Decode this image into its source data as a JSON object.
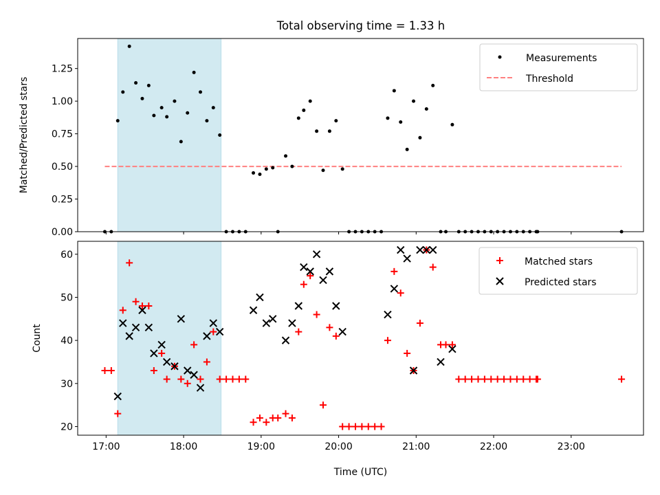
{
  "chart_data": [
    {
      "type": "scatter",
      "title": "Total observing time = 1.33 h",
      "xlabel": "",
      "ylabel": "Matched/Predicted stars",
      "xlim": [
        "16:38",
        "23:56"
      ],
      "ylim": [
        0,
        1.48
      ],
      "yticks": [
        0.0,
        0.25,
        0.5,
        0.75,
        1.0,
        1.25
      ],
      "ytick_labels": [
        "0.00",
        "0.25",
        "0.50",
        "0.75",
        "1.00",
        "1.25"
      ],
      "xticks": [
        "17:00",
        "18:00",
        "19:00",
        "20:00",
        "21:00",
        "22:00",
        "23:00"
      ],
      "shaded_interval": [
        "17:09",
        "18:29"
      ],
      "shade_color": "#add8e6",
      "legend_position": "top-right",
      "legend": [
        "Measurements",
        "Threshold"
      ],
      "series": [
        {
          "name": "Measurements",
          "marker": "dot",
          "color": "#000000",
          "x": [
            "16:59",
            "17:04",
            "17:09",
            "17:13",
            "17:18",
            "17:23",
            "17:28",
            "17:33",
            "17:37",
            "17:43",
            "17:47",
            "17:53",
            "17:58",
            "18:03",
            "18:08",
            "18:13",
            "18:18",
            "18:23",
            "18:28",
            "18:33",
            "18:38",
            "18:43",
            "18:48",
            "18:54",
            "18:59",
            "19:04",
            "19:09",
            "19:13",
            "19:19",
            "19:24",
            "19:29",
            "19:33",
            "19:38",
            "19:43",
            "19:48",
            "19:53",
            "19:58",
            "20:03",
            "20:08",
            "20:13",
            "20:18",
            "20:23",
            "20:28",
            "20:33",
            "20:38",
            "20:43",
            "20:48",
            "20:53",
            "20:58",
            "21:03",
            "21:08",
            "21:13",
            "21:19",
            "21:23",
            "21:28",
            "21:33",
            "21:38",
            "21:43",
            "21:48",
            "21:53",
            "21:58",
            "22:03",
            "22:08",
            "22:13",
            "22:18",
            "22:23",
            "22:28",
            "22:33",
            "22:34",
            "23:39"
          ],
          "y": [
            0,
            0,
            0.85,
            1.07,
            1.42,
            1.14,
            1.02,
            1.12,
            0.89,
            0.95,
            0.88,
            1.0,
            0.69,
            0.91,
            1.22,
            1.07,
            0.85,
            0.95,
            0.74,
            0,
            0,
            0,
            0,
            0.45,
            0.44,
            0.48,
            0.49,
            0,
            0.58,
            0.5,
            0.87,
            0.93,
            1.0,
            0.77,
            0.47,
            0.77,
            0.85,
            0.48,
            0,
            0,
            0,
            0,
            0,
            0,
            0.87,
            1.08,
            0.84,
            0.63,
            1.0,
            0.72,
            0.94,
            1.12,
            0,
            0,
            0.82,
            0,
            0,
            0,
            0,
            0,
            0,
            0,
            0,
            0,
            0,
            0,
            0,
            0,
            0,
            0
          ]
        },
        {
          "name": "Threshold",
          "marker": "dashed-line",
          "color": "#ff8080",
          "x": [
            "16:59",
            "23:39"
          ],
          "y": [
            0.5,
            0.5
          ]
        }
      ]
    },
    {
      "type": "scatter",
      "title": "",
      "xlabel": "Time (UTC)",
      "ylabel": "Count",
      "xlim": [
        "16:38",
        "23:56"
      ],
      "ylim": [
        18,
        63
      ],
      "yticks": [
        20,
        30,
        40,
        50,
        60
      ],
      "ytick_labels": [
        "20",
        "30",
        "40",
        "50",
        "60"
      ],
      "xticks": [
        "17:00",
        "18:00",
        "19:00",
        "20:00",
        "21:00",
        "22:00",
        "23:00"
      ],
      "xtick_labels": [
        "17:00",
        "18:00",
        "19:00",
        "20:00",
        "21:00",
        "22:00",
        "23:00"
      ],
      "shaded_interval": [
        "17:09",
        "18:29"
      ],
      "shade_color": "#add8e6",
      "legend_position": "top-right",
      "legend": [
        "Matched stars",
        "Predicted stars"
      ],
      "series": [
        {
          "name": "Matched stars",
          "marker": "plus",
          "color": "#ff0000",
          "x": [
            "16:59",
            "17:04",
            "17:09",
            "17:13",
            "17:18",
            "17:23",
            "17:28",
            "17:33",
            "17:37",
            "17:43",
            "17:47",
            "17:53",
            "17:58",
            "18:03",
            "18:08",
            "18:13",
            "18:18",
            "18:23",
            "18:28",
            "18:33",
            "18:38",
            "18:43",
            "18:48",
            "18:54",
            "18:59",
            "19:04",
            "19:09",
            "19:13",
            "19:19",
            "19:24",
            "19:29",
            "19:33",
            "19:38",
            "19:43",
            "19:48",
            "19:53",
            "19:58",
            "20:03",
            "20:08",
            "20:13",
            "20:18",
            "20:23",
            "20:28",
            "20:33",
            "20:38",
            "20:43",
            "20:48",
            "20:53",
            "20:58",
            "21:03",
            "21:08",
            "21:13",
            "21:19",
            "21:23",
            "21:28",
            "21:33",
            "21:38",
            "21:43",
            "21:48",
            "21:53",
            "21:58",
            "22:03",
            "22:08",
            "22:13",
            "22:18",
            "22:23",
            "22:28",
            "22:33",
            "22:34",
            "23:39"
          ],
          "y": [
            33,
            33,
            23,
            47,
            58,
            49,
            48,
            48,
            33,
            37,
            31,
            34,
            31,
            30,
            39,
            31,
            35,
            42,
            31,
            31,
            31,
            31,
            31,
            21,
            22,
            21,
            22,
            22,
            23,
            22,
            42,
            53,
            55,
            46,
            25,
            43,
            41,
            20,
            20,
            20,
            20,
            20,
            20,
            20,
            40,
            56,
            51,
            37,
            33,
            44,
            61,
            57,
            39,
            39,
            39,
            31,
            31,
            31,
            31,
            31,
            31,
            31,
            31,
            31,
            31,
            31,
            31,
            31,
            31,
            31
          ]
        },
        {
          "name": "Predicted stars",
          "marker": "x",
          "color": "#000000",
          "x": [
            "17:09",
            "17:13",
            "17:18",
            "17:23",
            "17:28",
            "17:33",
            "17:37",
            "17:43",
            "17:47",
            "17:53",
            "17:58",
            "18:03",
            "18:08",
            "18:13",
            "18:18",
            "18:23",
            "18:28",
            "18:54",
            "18:59",
            "19:04",
            "19:09",
            "19:19",
            "19:24",
            "19:29",
            "19:33",
            "19:38",
            "19:43",
            "19:48",
            "19:53",
            "19:58",
            "20:03",
            "20:38",
            "20:43",
            "20:48",
            "20:53",
            "20:58",
            "21:03",
            "21:08",
            "21:13",
            "21:19",
            "21:28"
          ],
          "y": [
            27,
            44,
            41,
            43,
            47,
            43,
            37,
            39,
            35,
            34,
            45,
            33,
            32,
            29,
            41,
            44,
            42,
            47,
            50,
            44,
            45,
            40,
            44,
            48,
            57,
            56,
            60,
            54,
            56,
            48,
            42,
            46,
            52,
            61,
            59,
            33,
            61,
            61,
            61,
            35,
            38
          ]
        }
      ]
    }
  ]
}
